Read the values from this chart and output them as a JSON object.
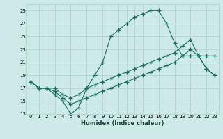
{
  "xlabel": "Humidex (Indice chaleur)",
  "bg_color": "#ceeae8",
  "grid_color": "#b0d4d0",
  "line_color": "#1a6b5e",
  "xlim": [
    -0.5,
    23.5
  ],
  "ylim": [
    13,
    30
  ],
  "xticks": [
    0,
    1,
    2,
    3,
    4,
    5,
    6,
    7,
    8,
    9,
    10,
    11,
    12,
    13,
    14,
    15,
    16,
    17,
    18,
    19,
    20,
    21,
    22,
    23
  ],
  "yticks": [
    13,
    15,
    17,
    19,
    21,
    23,
    25,
    27,
    29
  ],
  "line1_x": [
    0,
    1,
    2,
    3,
    4,
    5,
    6,
    7,
    8,
    9,
    10,
    11,
    12,
    13,
    14,
    15,
    16,
    17,
    18,
    19,
    20,
    21,
    22,
    23
  ],
  "line1_y": [
    18,
    17,
    17,
    16,
    15,
    13,
    14,
    17,
    19,
    21,
    25,
    26,
    27,
    28,
    28.5,
    29,
    29,
    27,
    24,
    22,
    22,
    22,
    22,
    22
  ],
  "line2_x": [
    0,
    1,
    2,
    3,
    4,
    5,
    6,
    7,
    8,
    9,
    10,
    11,
    12,
    13,
    14,
    15,
    16,
    17,
    18,
    19,
    20,
    21,
    22,
    23
  ],
  "line2_y": [
    18,
    17,
    17,
    17,
    16,
    15.5,
    16,
    17,
    17.5,
    18,
    18.5,
    19,
    19.5,
    20,
    20.5,
    21,
    21.5,
    22,
    22.5,
    23.5,
    24.5,
    22,
    20,
    19
  ],
  "line3_x": [
    0,
    1,
    2,
    3,
    4,
    5,
    6,
    7,
    8,
    9,
    10,
    11,
    12,
    13,
    14,
    15,
    16,
    17,
    18,
    19,
    20,
    21,
    22,
    23
  ],
  "line3_y": [
    18,
    17,
    17,
    16.5,
    15.5,
    14.5,
    15,
    15.5,
    16,
    16.5,
    17,
    17.5,
    18,
    18.5,
    19,
    19.5,
    20,
    20.5,
    21,
    22,
    23,
    22,
    20,
    19
  ]
}
